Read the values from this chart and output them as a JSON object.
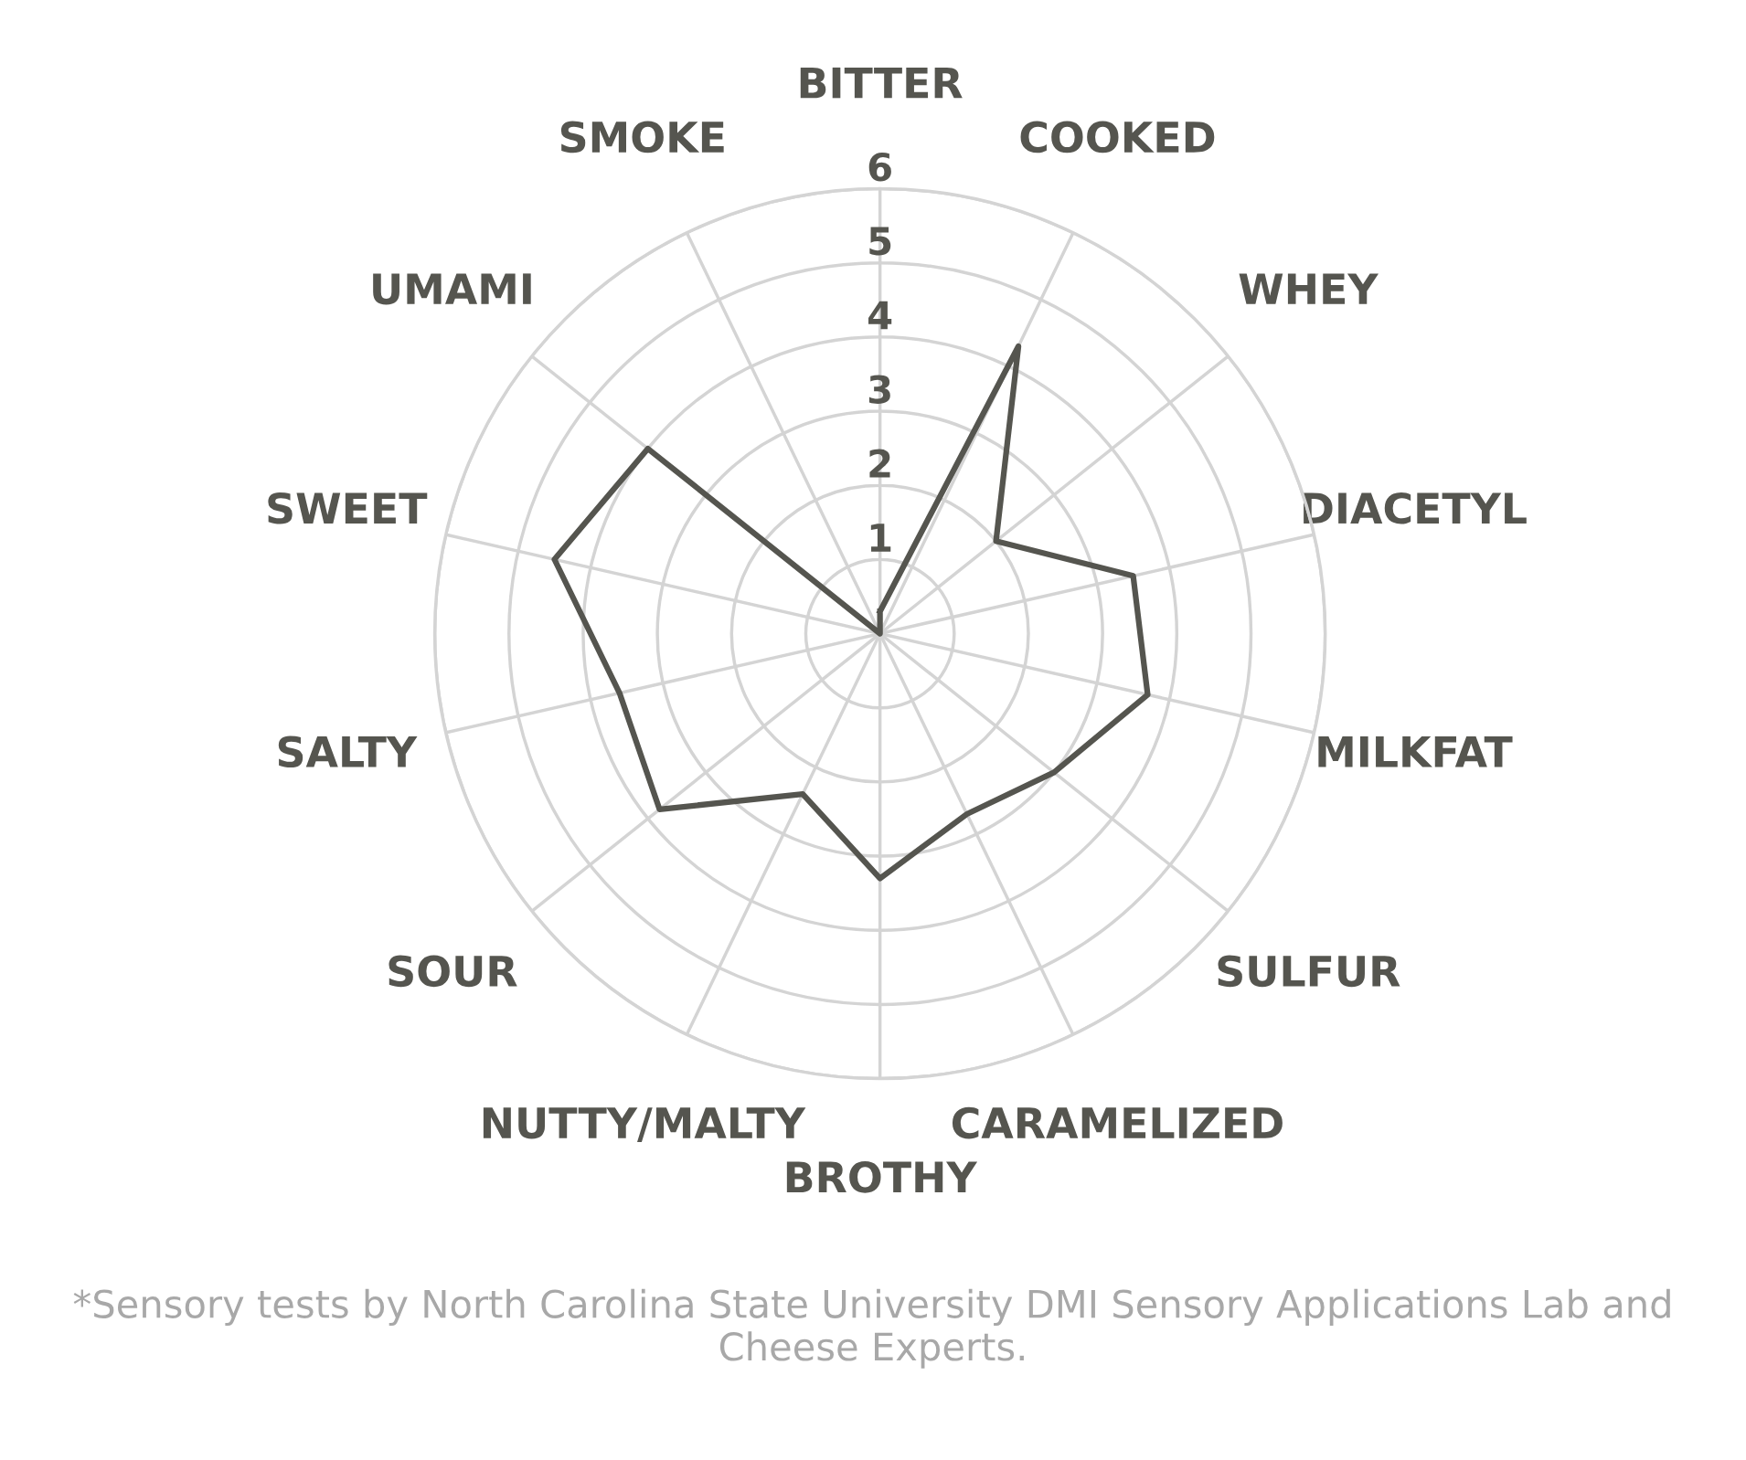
{
  "chart_data": {
    "type": "radar",
    "categories": [
      "BITTER",
      "COOKED",
      "WHEY",
      "DIACETYL",
      "MILKFAT",
      "SULFUR",
      "CARAMELIZED",
      "BROTHY",
      "NUTTY/MALTY",
      "SOUR",
      "SALTY",
      "SWEET",
      "UMAMI",
      "SMOKE"
    ],
    "series": [
      {
        "color": "#55554f",
        "values": [
          0.3,
          4.3,
          2.0,
          3.5,
          3.7,
          3.0,
          2.7,
          3.3,
          2.4,
          3.8,
          3.6,
          4.5,
          4.0,
          0.0
        ]
      }
    ],
    "ylim": [
      0,
      6
    ],
    "yticks": [
      1,
      2,
      3,
      4,
      5,
      6
    ],
    "grid": true,
    "marker": "none",
    "line_style": "solid",
    "annotations": [
      "*Sensory tests by North Carolina State University DMI Sensory Applications Lab and Cheese Experts."
    ]
  }
}
